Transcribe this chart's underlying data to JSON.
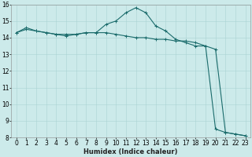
{
  "xlabel": "Humidex (Indice chaleur)",
  "xlim": [
    -0.5,
    23.5
  ],
  "ylim": [
    8,
    16
  ],
  "xticks": [
    0,
    1,
    2,
    3,
    4,
    5,
    6,
    7,
    8,
    9,
    10,
    11,
    12,
    13,
    14,
    15,
    16,
    17,
    18,
    19,
    20,
    21,
    22,
    23
  ],
  "yticks": [
    8,
    9,
    10,
    11,
    12,
    13,
    14,
    15,
    16
  ],
  "bg_color": "#cceaea",
  "grid_color": "#aad4d4",
  "line_color": "#1a6b6b",
  "line1_x": [
    0,
    1,
    2,
    3,
    4,
    5,
    6,
    7,
    8,
    9,
    10,
    11,
    12,
    13,
    14,
    15,
    16,
    17,
    18,
    19,
    20,
    21,
    22,
    23
  ],
  "line1_y": [
    14.3,
    14.6,
    14.4,
    14.3,
    14.2,
    14.1,
    14.2,
    14.3,
    14.3,
    14.8,
    15.0,
    15.5,
    15.8,
    15.5,
    14.7,
    14.4,
    13.9,
    13.7,
    13.5,
    13.5,
    13.3,
    8.3,
    8.2,
    8.1
  ],
  "line2_x": [
    0,
    1,
    2,
    3,
    4,
    5,
    6,
    7,
    8,
    9,
    10,
    11,
    12,
    13,
    14,
    15,
    16,
    17,
    18,
    19,
    20,
    21,
    22,
    23
  ],
  "line2_y": [
    14.3,
    14.5,
    14.4,
    14.3,
    14.2,
    14.2,
    14.2,
    14.3,
    14.3,
    14.3,
    14.2,
    14.1,
    14.0,
    14.0,
    13.9,
    13.9,
    13.8,
    13.8,
    13.7,
    13.5,
    8.5,
    8.3,
    8.2,
    8.1
  ],
  "xlabel_fontsize": 6,
  "tick_fontsize": 5.5,
  "line_width": 0.8,
  "marker_size": 2.5
}
